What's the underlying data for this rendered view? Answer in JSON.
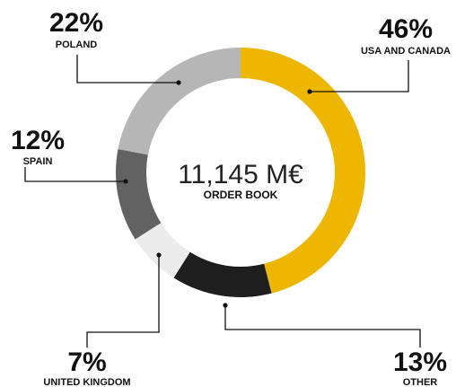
{
  "chart_data": {
    "type": "pie",
    "style": "donut",
    "center": {
      "total": "11,145 M€",
      "label": "ORDER BOOK"
    },
    "slices": [
      {
        "label": "USA AND CANADA",
        "value": 46,
        "display": "46%",
        "color": "#EDB600"
      },
      {
        "label": "OTHER",
        "value": 13,
        "display": "13%",
        "color": "#1E1E1E"
      },
      {
        "label": "UNITED KINGDOM",
        "value": 7,
        "display": "7%",
        "color": "#ECECEC"
      },
      {
        "label": "SPAIN",
        "value": 12,
        "display": "12%",
        "color": "#626262"
      },
      {
        "label": "POLAND",
        "value": 22,
        "display": "22%",
        "color": "#B6B6B6"
      }
    ]
  }
}
